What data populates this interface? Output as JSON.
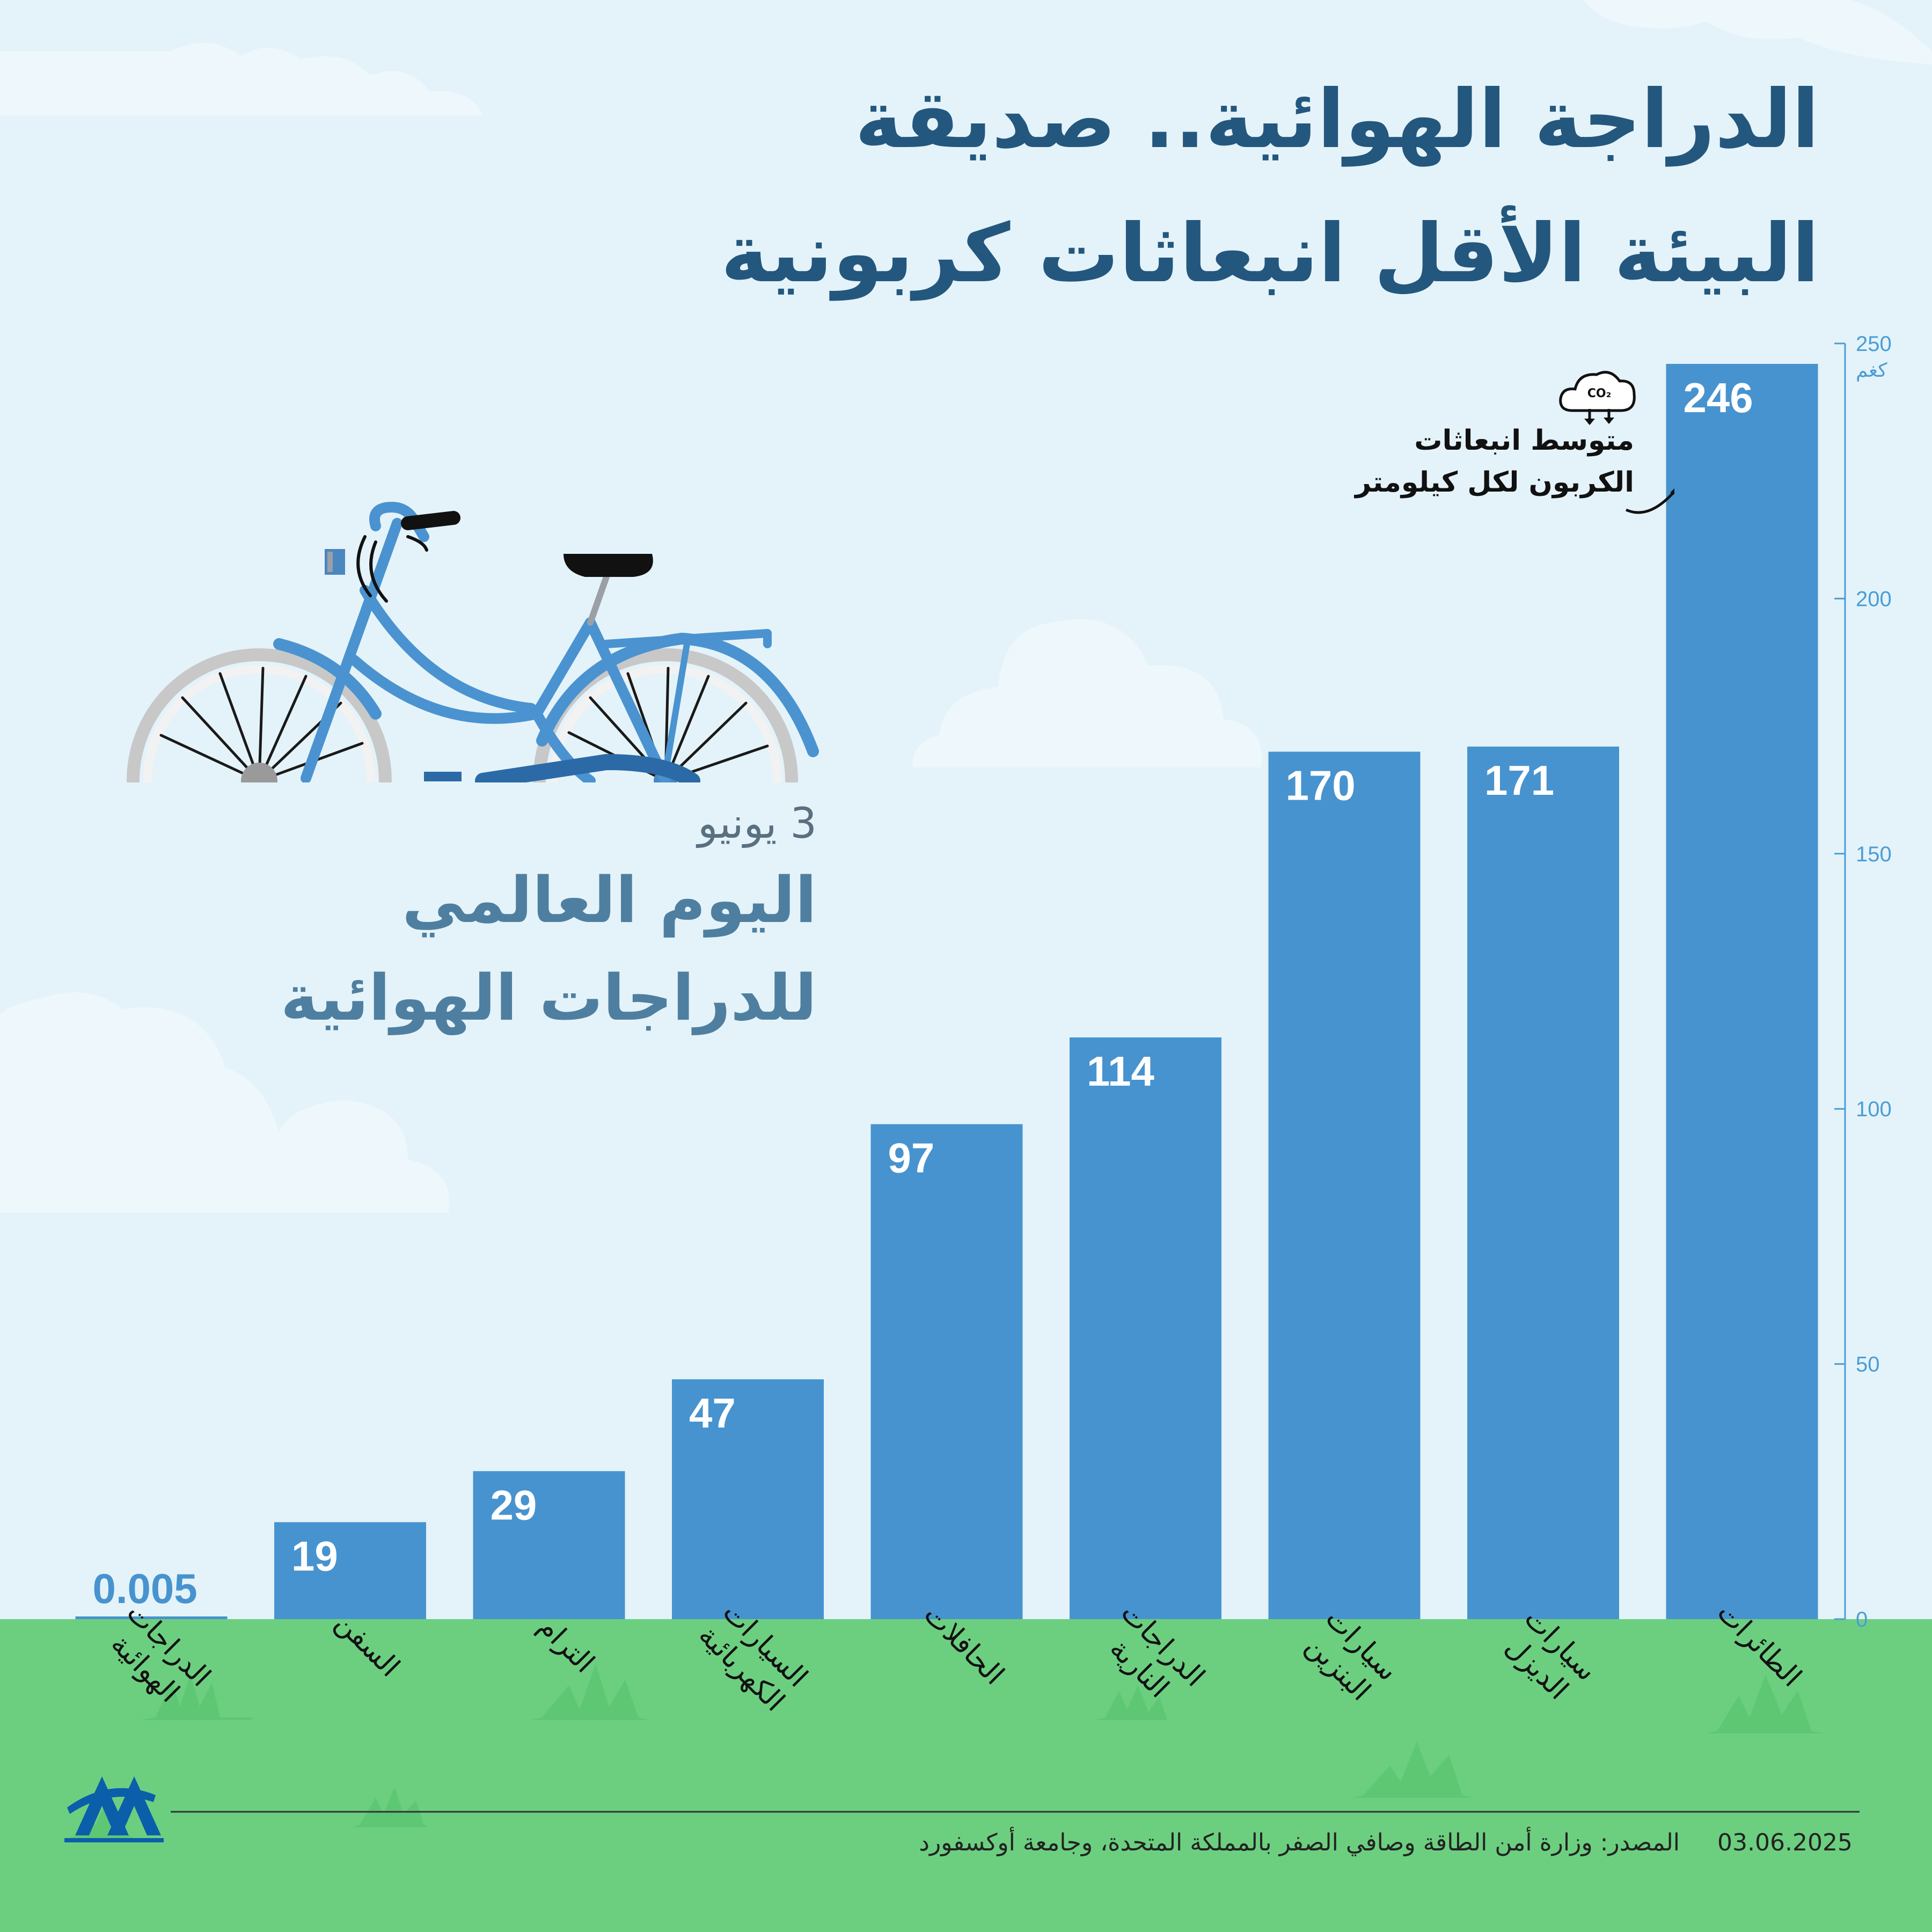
{
  "title": {
    "line1": "الدراجة الهوائية.. صديقة",
    "line2": "البيئة الأقل انبعاثات كربونية"
  },
  "event": {
    "date": "3 يونيو",
    "line1": "اليوم العالمي",
    "line2": "للدراجات الهوائية"
  },
  "annotation": {
    "line1": "متوسط انبعاثات",
    "line2": "الكربون لكل كيلومتر",
    "icon": "co2-cloud-icon",
    "icon_label": "CO₂"
  },
  "footer": {
    "source": "المصدر: وزارة أمن الطاقة وصافي الصفر بالمملكة المتحدة، وجامعة أوكسفورد",
    "date": "03.06.2025",
    "logo": "AA"
  },
  "colors": {
    "sky": "#e4f3f9",
    "ground": "#6ccf80",
    "bar": "#4793cf",
    "title": "#24577e",
    "axis": "#4a9dd6"
  },
  "chart_data": {
    "type": "bar",
    "categories": [
      [
        "الدراجات",
        "الهوائية"
      ],
      [
        "السفن"
      ],
      [
        "الترام"
      ],
      [
        "السيارات",
        "الكهربائية"
      ],
      [
        "الحافلات"
      ],
      [
        "الدراجات",
        "النارية"
      ],
      [
        "سيارات",
        "البنزين"
      ],
      [
        "سيارات",
        "الديزل"
      ],
      [
        "الطائرات"
      ]
    ],
    "values": [
      0.005,
      19,
      29,
      47,
      97,
      114,
      170,
      171,
      246
    ],
    "value_labels": [
      "0.005",
      "19",
      "29",
      "47",
      "97",
      "114",
      "170",
      "171",
      "246"
    ],
    "ylim": [
      0,
      250
    ],
    "yticks": [
      0,
      50,
      100,
      150,
      200,
      250
    ],
    "yunit": "كغم",
    "axis_position": "right",
    "grid": false
  }
}
